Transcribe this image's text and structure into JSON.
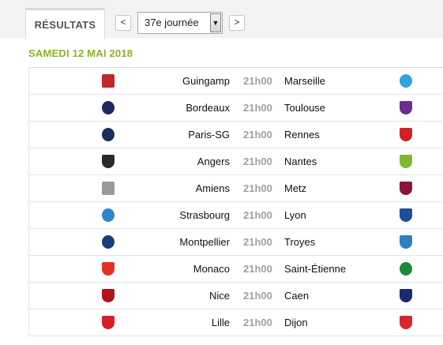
{
  "tabs": {
    "results_label": "RÉSULTATS"
  },
  "navigation": {
    "prev_label": "<",
    "next_label": ">",
    "round_selected": "37e journée",
    "dropdown_arrow": "▼"
  },
  "date_heading": "SAMEDI 12 MAI 2018",
  "matches": [
    {
      "home": "Guingamp",
      "time": "21h00",
      "away": "Marseille",
      "home_logo": {
        "icon": "guingamp-logo",
        "color": "#c0282d",
        "shape": "rect"
      },
      "away_logo": {
        "icon": "marseille-logo",
        "color": "#2fa4dc",
        "shape": "round"
      }
    },
    {
      "home": "Bordeaux",
      "time": "21h00",
      "away": "Toulouse",
      "home_logo": {
        "icon": "bordeaux-logo",
        "color": "#1d2a5b",
        "shape": "round"
      },
      "away_logo": {
        "icon": "toulouse-logo",
        "color": "#6b2c91",
        "shape": "shield"
      }
    },
    {
      "home": "Paris-SG",
      "time": "21h00",
      "away": "Rennes",
      "home_logo": {
        "icon": "psg-logo",
        "color": "#1b2d5c",
        "shape": "round"
      },
      "away_logo": {
        "icon": "rennes-logo",
        "color": "#d32027",
        "shape": "shield"
      }
    },
    {
      "home": "Angers",
      "time": "21h00",
      "away": "Nantes",
      "home_logo": {
        "icon": "angers-logo",
        "color": "#2a2a2a",
        "shape": "shield"
      },
      "away_logo": {
        "icon": "nantes-logo",
        "color": "#7fb832",
        "shape": "shield"
      }
    },
    {
      "home": "Amiens",
      "time": "21h00",
      "away": "Metz",
      "home_logo": {
        "icon": "amiens-logo",
        "color": "#9a9a9a",
        "shape": "rect"
      },
      "away_logo": {
        "icon": "metz-logo",
        "color": "#8a1538",
        "shape": "shield"
      }
    },
    {
      "home": "Strasbourg",
      "time": "21h00",
      "away": "Lyon",
      "home_logo": {
        "icon": "strasbourg-logo",
        "color": "#2f86c8",
        "shape": "round"
      },
      "away_logo": {
        "icon": "lyon-logo",
        "color": "#1d4e9a",
        "shape": "shield"
      }
    },
    {
      "home": "Montpellier",
      "time": "21h00",
      "away": "Troyes",
      "home_logo": {
        "icon": "montpellier-logo",
        "color": "#17407a",
        "shape": "round"
      },
      "away_logo": {
        "icon": "troyes-logo",
        "color": "#2f7fc1",
        "shape": "shield"
      }
    },
    {
      "home": "Monaco",
      "time": "21h00",
      "away": "Saint-Étienne",
      "home_logo": {
        "icon": "monaco-logo",
        "color": "#e63027",
        "shape": "shield"
      },
      "away_logo": {
        "icon": "saint-etienne-logo",
        "color": "#1c8a3c",
        "shape": "round"
      }
    },
    {
      "home": "Nice",
      "time": "21h00",
      "away": "Caen",
      "home_logo": {
        "icon": "nice-logo",
        "color": "#b3141a",
        "shape": "shield"
      },
      "away_logo": {
        "icon": "caen-logo",
        "color": "#1c2a6e",
        "shape": "shield"
      }
    },
    {
      "home": "Lille",
      "time": "21h00",
      "away": "Dijon",
      "home_logo": {
        "icon": "lille-logo",
        "color": "#d81e28",
        "shape": "shield"
      },
      "away_logo": {
        "icon": "dijon-logo",
        "color": "#d8262e",
        "shape": "shield"
      }
    }
  ]
}
